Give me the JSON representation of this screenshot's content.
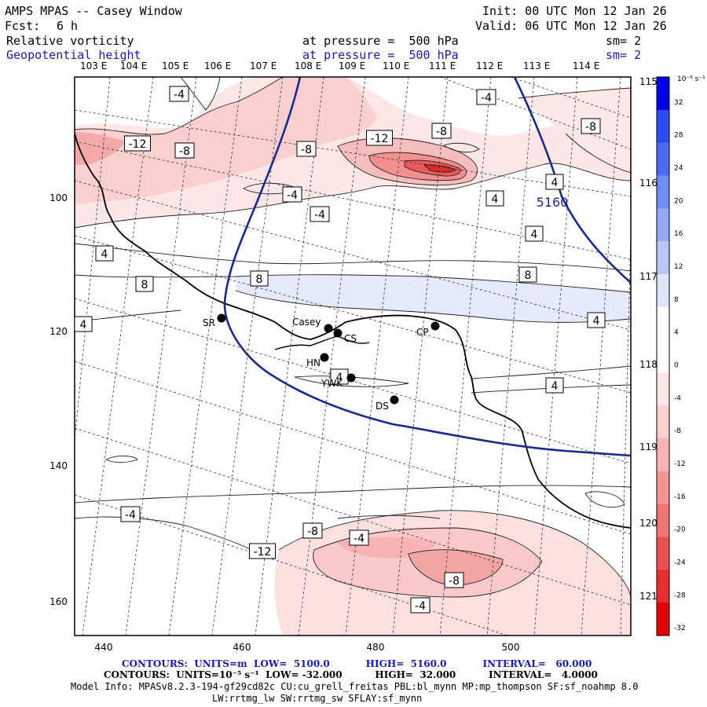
{
  "header": {
    "title": "AMPS MPAS -- Casey Window",
    "fcst_label": "Fcst:",
    "fcst_value": "6 h",
    "init": "Init: 00 UTC Mon 12 Jan 26",
    "valid": "Valid: 06 UTC Mon 12 Jan 26",
    "field1_name": "Relative vorticity",
    "field1_level": "at pressure =  500 hPa",
    "field1_sm": "sm= 2",
    "field2_name": "Geopotential height",
    "field2_level": "at pressure =  500 hPa",
    "field2_sm": "sm= 2"
  },
  "longitude_labels": [
    "103 E",
    "104 E",
    "105 E",
    "106 E",
    "107 E",
    "108 E",
    "109 E",
    "110 E",
    "111 E",
    "112 E",
    "113 E",
    "114 E"
  ],
  "latitude_right_labels": [
    "115 E",
    "116 E",
    "117 E",
    "118 E",
    "119 E",
    "120 E",
    "121 E"
  ],
  "x_axis_ticks": [
    "440",
    "460",
    "480",
    "500"
  ],
  "y_axis_ticks": [
    "100",
    "120",
    "140",
    "160"
  ],
  "stations": [
    {
      "name": "SR"
    },
    {
      "name": "Casey"
    },
    {
      "name": "CS"
    },
    {
      "name": "CP"
    },
    {
      "name": "HN"
    },
    {
      "name": "YWK"
    },
    {
      "name": "DS"
    }
  ],
  "contour_labels": [
    "-4",
    "-12",
    "-8",
    "-8",
    "-12",
    "-8",
    "-4",
    "-8",
    "-4",
    "-4",
    "4",
    "4",
    "5160",
    "4",
    "4",
    "8",
    "8",
    "8",
    "4",
    "4",
    "4",
    "4",
    "-4",
    "-8",
    "-4",
    "-12",
    "-8",
    "-4"
  ],
  "colorbar": {
    "units": "10⁻⁵ s⁻¹",
    "ticks": [
      "32",
      "28",
      "24",
      "20",
      "16",
      "12",
      "8",
      "4",
      "0",
      "-4",
      "-8",
      "-12",
      "-16",
      "-20",
      "-24",
      "-28",
      "-32"
    ],
    "colors": [
      "#0000e8",
      "#2a4cf0",
      "#4b6cf2",
      "#6f8cf4",
      "#94a8f6",
      "#b8c6f8",
      "#dfe4fb",
      "#ffffff",
      "#ffffff",
      "#fde8e8",
      "#fad0d0",
      "#f6b3b3",
      "#f29494",
      "#ee7474",
      "#ea5252",
      "#e62e2e",
      "#e20000"
    ]
  },
  "footer": {
    "line1": "CONTOURS:  UNITS=m  LOW=  5100.0           HIGH=  5160.0           INTERVAL=   60.000",
    "line2": "CONTOURS:  UNITS=10⁻⁵ s⁻¹  LOW= -32.000          HIGH=  32.000          INTERVAL=   4.0000",
    "model1": "Model Info: MPASv8.2.3-194-gf29cd82c CU:cu_grell_freitas PBL:bl_mynn MP:mp_thompson SF:sf_noahmp 8.0",
    "model2": "LW:rrtmg_lw SW:rrtmg_sw SFLAY:sf_mynn"
  }
}
